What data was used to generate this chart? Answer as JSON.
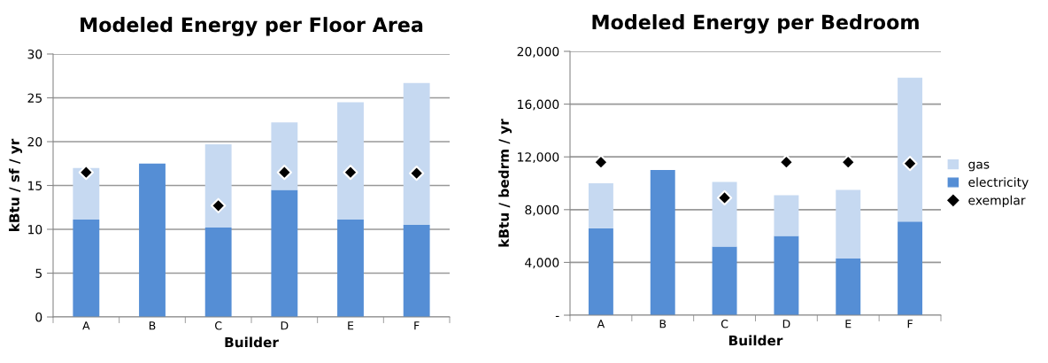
{
  "chart_data": [
    {
      "type": "bar",
      "title": "Modeled Energy per Floor Area",
      "xlabel": "Builder",
      "ylabel": "kBtu / sf / yr",
      "categories": [
        "A",
        "B",
        "C",
        "D",
        "E",
        "F"
      ],
      "stacked": true,
      "ylim": [
        0,
        30
      ],
      "yticks": [
        0,
        5,
        10,
        15,
        20,
        25,
        30
      ],
      "grid": "y",
      "legend": false,
      "marker": "diamond",
      "series": [
        {
          "color": "#558ed5",
          "values": [
            11.1,
            17.5,
            10.2,
            14.5,
            11.1,
            10.5
          ]
        },
        {
          "color": "#c6d9f1",
          "values": [
            5.9,
            null,
            9.5,
            7.7,
            13.4,
            16.2
          ]
        },
        {
          "type": "scatter",
          "color": "#000000",
          "x": [
            "A",
            "B",
            "C",
            "D",
            "E",
            "F"
          ],
          "values": [
            16.5,
            null,
            12.7,
            16.5,
            16.5,
            16.4
          ]
        }
      ]
    },
    {
      "type": "bar",
      "title": "Modeled Energy per Bedroom",
      "xlabel": "Builder",
      "ylabel": "kBtu / bedrm / yr",
      "categories": [
        "A",
        "B",
        "C",
        "D",
        "E",
        "F"
      ],
      "stacked": true,
      "ylim": [
        0,
        20000
      ],
      "yticks": [
        {
          "value": 0,
          "label": "-"
        },
        {
          "value": 4000,
          "label": "4,000"
        },
        {
          "value": 8000,
          "label": "8,000"
        },
        {
          "value": 12000,
          "label": "12,000"
        },
        {
          "value": 16000,
          "label": "16,000"
        },
        {
          "value": 20000,
          "label": "20,000"
        }
      ],
      "grid": "y",
      "legend": "right",
      "marker": "diamond",
      "series": [
        {
          "name": "electricity",
          "color": "#558ed5",
          "values": [
            6600,
            11000,
            5200,
            6000,
            4300,
            7100
          ]
        },
        {
          "name": "gas",
          "color": "#c6d9f1",
          "values": [
            3400,
            null,
            4900,
            3100,
            5200,
            10900
          ]
        },
        {
          "name": "exemplar",
          "type": "scatter",
          "color": "#000000",
          "x": [
            "A",
            "B",
            "C",
            "D",
            "E",
            "F"
          ],
          "values": [
            11600,
            null,
            8900,
            11600,
            11600,
            11500
          ]
        }
      ]
    }
  ]
}
